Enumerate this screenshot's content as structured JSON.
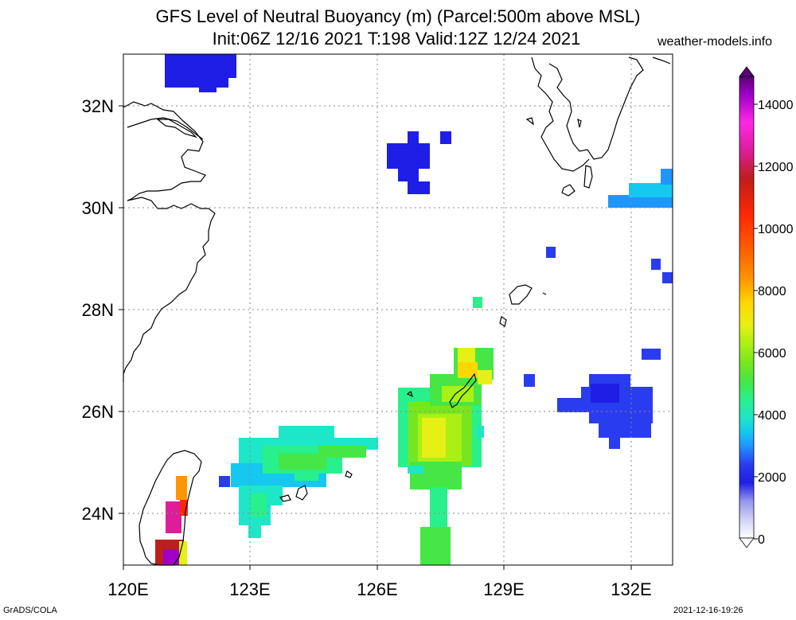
{
  "title_line1": "GFS Level of Neutral Buoyancy (m) (Parcel:500m above MSL)",
  "title_line2": "Init:06Z 12/16 2021 T:198 Valid:12Z 12/24 2021",
  "site": "weather-models.info",
  "footer_left": "GrADS/COLA",
  "footer_right": "2021-12-16-19:26",
  "map": {
    "lon_labels": [
      "120E",
      "123E",
      "126E",
      "129E",
      "132E"
    ],
    "lat_labels": [
      "32N",
      "30N",
      "28N",
      "26N",
      "24N"
    ],
    "lon_range": [
      120,
      133
    ],
    "lat_range": [
      23,
      33
    ]
  },
  "colorbar": {
    "labels": [
      "14000",
      "12000",
      "10000",
      "8000",
      "6000",
      "4000",
      "2000",
      "0"
    ],
    "range": [
      0,
      15000
    ]
  },
  "colors": {
    "c1000": "#1e1ee6",
    "c1500": "#2a3cf0",
    "c2500": "#1e96ff",
    "c3000": "#14c8f0",
    "c3500": "#1ee6c8",
    "c4000": "#28f08c",
    "c4500": "#46e646",
    "c5000": "#78e61e",
    "c5500": "#aaf014",
    "c6000": "#e6f014",
    "c7000": "#ffd700",
    "c8000": "#ff9600",
    "c10000": "#ff2800",
    "c12000": "#be1e1e",
    "c13000": "#dc1e9b",
    "c14000": "#a000c8"
  }
}
